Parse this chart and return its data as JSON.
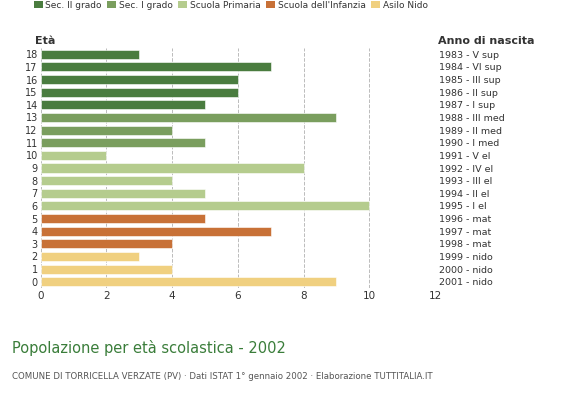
{
  "ages": [
    18,
    17,
    16,
    15,
    14,
    13,
    12,
    11,
    10,
    9,
    8,
    7,
    6,
    5,
    4,
    3,
    2,
    1,
    0
  ],
  "values": [
    3,
    7,
    6,
    6,
    5,
    9,
    4,
    5,
    2,
    8,
    4,
    5,
    10,
    5,
    7,
    4,
    3,
    4,
    9
  ],
  "right_labels": [
    "1983 - V sup",
    "1984 - VI sup",
    "1985 - III sup",
    "1986 - II sup",
    "1987 - I sup",
    "1988 - III med",
    "1989 - II med",
    "1990 - I med",
    "1991 - V el",
    "1992 - IV el",
    "1993 - III el",
    "1994 - II el",
    "1995 - I el",
    "1996 - mat",
    "1997 - mat",
    "1998 - mat",
    "1999 - nido",
    "2000 - nido",
    "2001 - nido"
  ],
  "bar_colors": [
    "#4a7c3f",
    "#4a7c3f",
    "#4a7c3f",
    "#4a7c3f",
    "#4a7c3f",
    "#7a9e5e",
    "#7a9e5e",
    "#7a9e5e",
    "#b5cc8e",
    "#b5cc8e",
    "#b5cc8e",
    "#b5cc8e",
    "#b5cc8e",
    "#c87137",
    "#c87137",
    "#c87137",
    "#f0d080",
    "#f0d080",
    "#f0d080"
  ],
  "xlabel_left": "Età",
  "xlabel_right": "Anno di nascita",
  "title": "Popolazione per età scolastica - 2002",
  "subtitle": "COMUNE DI TORRICELLA VERZATE (PV) · Dati ISTAT 1° gennaio 2002 · Elaborazione TUTTITALIA.IT",
  "xlim": [
    0,
    12
  ],
  "xticks": [
    0,
    2,
    4,
    6,
    8,
    10,
    12
  ],
  "legend_labels": [
    "Sec. II grado",
    "Sec. I grado",
    "Scuola Primaria",
    "Scuola dell'Infanzia",
    "Asilo Nido"
  ],
  "legend_colors": [
    "#4a7c3f",
    "#7a9e5e",
    "#b5cc8e",
    "#c87137",
    "#f0d080"
  ],
  "bg_color": "#ffffff",
  "grid_color": "#bbbbbb",
  "text_color": "#333333",
  "title_color": "#3a7d3a",
  "subtitle_color": "#555555"
}
